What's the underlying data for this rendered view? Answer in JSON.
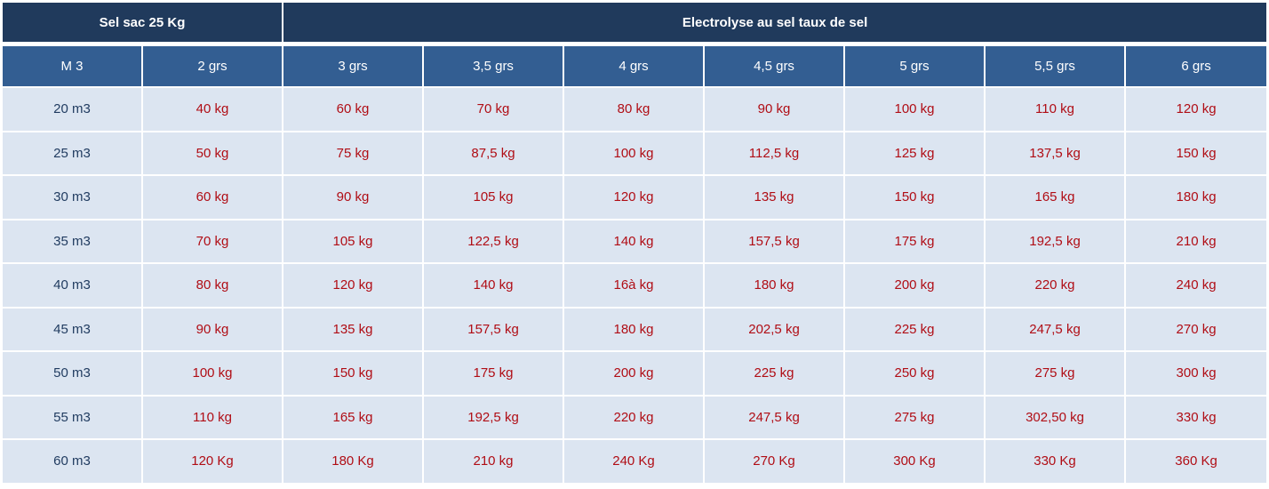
{
  "table": {
    "group_headers": [
      "Sel sac 25 Kg",
      "Electrolyse au sel taux de sel"
    ],
    "columns": [
      "M 3",
      "2 grs",
      "3 grs",
      "3,5 grs",
      "4 grs",
      "4,5 grs",
      "5 grs",
      "5,5 grs",
      "6 grs"
    ],
    "rows": [
      [
        "20 m3",
        "40 kg",
        "60 kg",
        "70 kg",
        "80 kg",
        "90 kg",
        "100 kg",
        "110 kg",
        "120 kg"
      ],
      [
        "25 m3",
        "50 kg",
        "75 kg",
        "87,5 kg",
        "100 kg",
        "112,5 kg",
        "125 kg",
        "137,5 kg",
        "150 kg"
      ],
      [
        "30 m3",
        "60 kg",
        "90 kg",
        "105 kg",
        "120 kg",
        "135 kg",
        "150 kg",
        "165 kg",
        "180 kg"
      ],
      [
        "35 m3",
        "70 kg",
        "105 kg",
        "122,5 kg",
        "140 kg",
        "157,5 kg",
        "175 kg",
        "192,5 kg",
        "210 kg"
      ],
      [
        "40 m3",
        "80 kg",
        "120 kg",
        "140 kg",
        "16à kg",
        "180 kg",
        "200 kg",
        "220 kg",
        "240 kg"
      ],
      [
        "45 m3",
        "90 kg",
        "135 kg",
        "157,5 kg",
        "180 kg",
        "202,5 kg",
        "225 kg",
        "247,5 kg",
        "270 kg"
      ],
      [
        "50 m3",
        "100 kg",
        "150 kg",
        "175 kg",
        "200 kg",
        "225 kg",
        "250 kg",
        "275 kg",
        "300 kg"
      ],
      [
        "55 m3",
        "110 kg",
        "165 kg",
        "192,5 kg",
        "220 kg",
        "247,5 kg",
        "275 kg",
        "302,50 kg",
        "330 kg"
      ],
      [
        "60 m3",
        "120 Kg",
        "180 Kg",
        "210 kg",
        "240 Kg",
        "270 Kg",
        "300 Kg",
        "330 Kg",
        "360 Kg"
      ]
    ]
  },
  "colors": {
    "group_header_bg": "#203a5c",
    "column_header_bg": "#335e92",
    "cell_bg": "#dce5f1",
    "volume_text": "#1f3a5f",
    "value_text": "#b00d15"
  }
}
